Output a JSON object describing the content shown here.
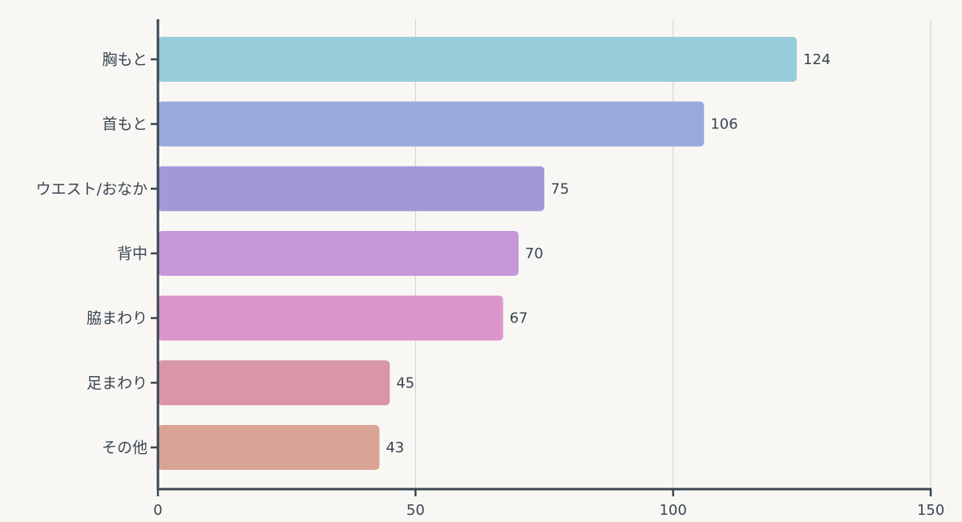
{
  "chart_data": {
    "type": "bar",
    "orientation": "horizontal",
    "categories": [
      "胸もと",
      "首もと",
      "ウエスト/おなか",
      "背中",
      "脇まわり",
      "足まわり",
      "その他"
    ],
    "values": [
      124,
      106,
      75,
      70,
      67,
      45,
      43
    ],
    "colors": [
      "#97cdd8",
      "#98aadb",
      "#a298d9",
      "#c497d8",
      "#da96cb",
      "#d996a6",
      "#d9a496"
    ],
    "xlim": [
      0,
      150
    ],
    "xticks": [
      0,
      50,
      100,
      150
    ],
    "grid": true,
    "data_labels": true
  }
}
